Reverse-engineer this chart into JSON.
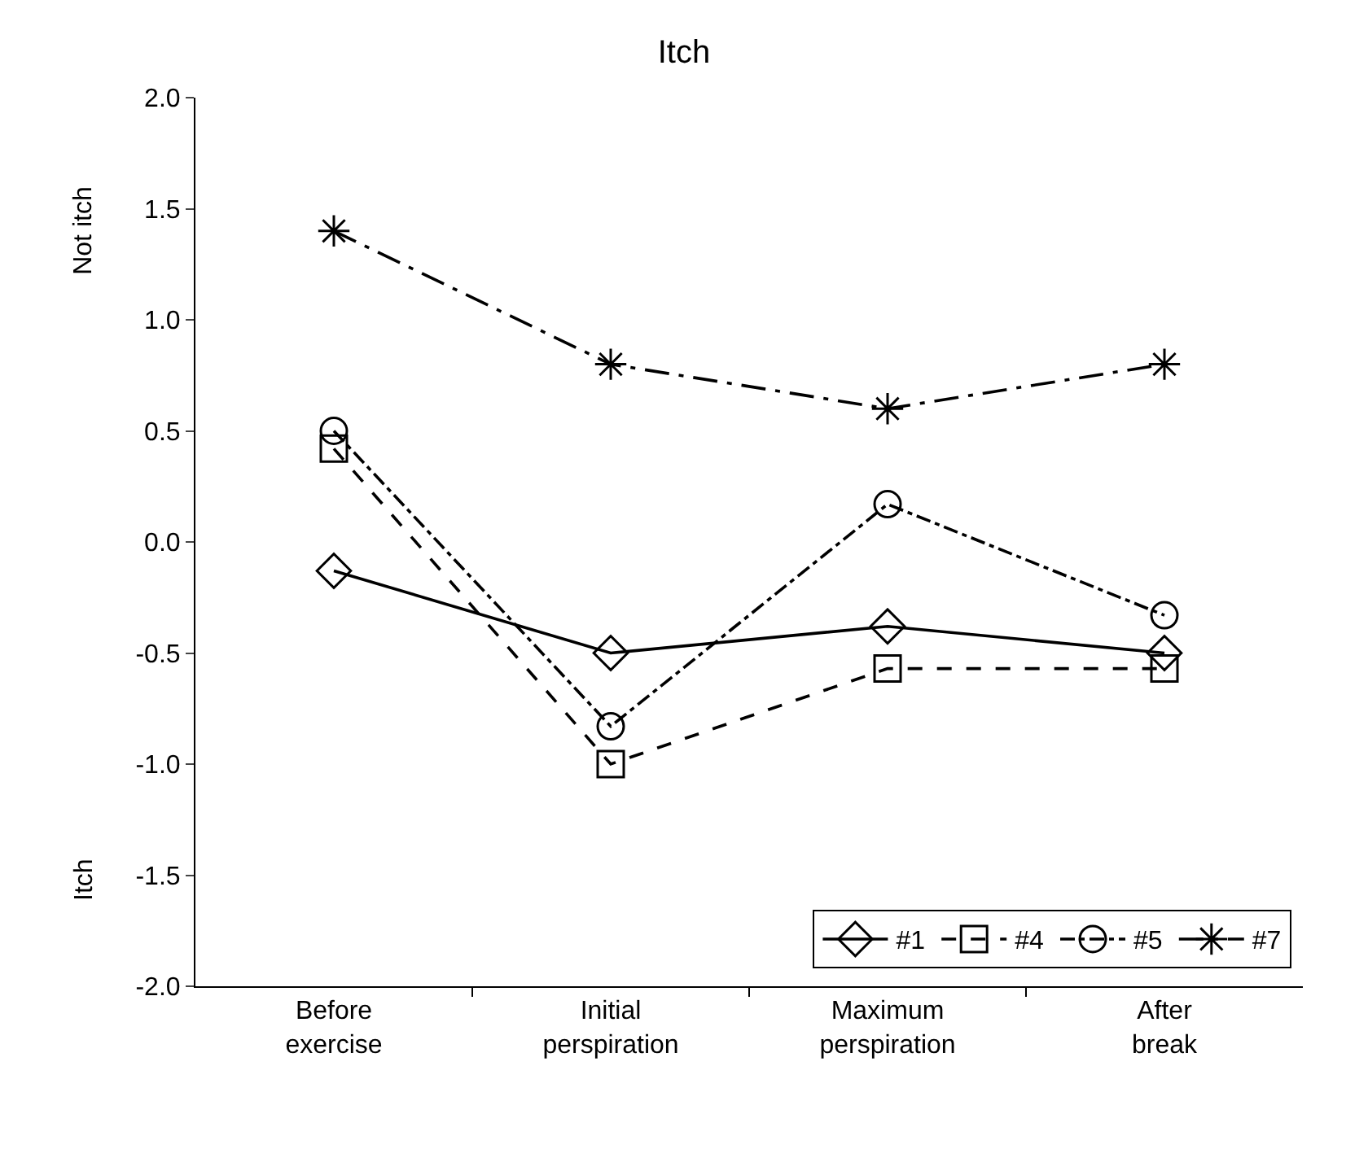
{
  "chart_data": {
    "type": "line",
    "title": "Itch",
    "categories": [
      "Before\nexercise",
      "Initial\nperspiration",
      "Maximum\nperspiration",
      "After\nbreak"
    ],
    "series": [
      {
        "name": "#1",
        "color": "#000000",
        "values": [
          -0.13,
          -0.5,
          -0.38,
          -0.5
        ],
        "marker": "diamond",
        "line_style": "solid"
      },
      {
        "name": "#4",
        "color": "#000000",
        "values": [
          0.42,
          -1.0,
          -0.57,
          -0.57
        ],
        "marker": "square",
        "line_style": "dashed"
      },
      {
        "name": "#5",
        "color": "#000000",
        "values": [
          0.5,
          -0.83,
          0.17,
          -0.33
        ],
        "marker": "circle",
        "line_style": "dashdot"
      },
      {
        "name": "#7",
        "color": "#000000",
        "values": [
          1.4,
          0.8,
          0.6,
          0.8
        ],
        "marker": "cross",
        "line_style": "longdashdot"
      }
    ],
    "ylim": [
      -2.0,
      2.0
    ],
    "yticks": [
      {
        "value": 2.0,
        "label": "2.0"
      },
      {
        "value": 1.5,
        "label": "1.5"
      },
      {
        "value": 1.0,
        "label": "1.0"
      },
      {
        "value": 0.5,
        "label": "0.5"
      },
      {
        "value": 0.0,
        "label": "0.0"
      },
      {
        "value": -0.5,
        "label": "-0.5"
      },
      {
        "value": -1.0,
        "label": "-1.0"
      },
      {
        "value": -1.5,
        "label": "-1.5"
      },
      {
        "value": -2.0,
        "label": "-2.0"
      }
    ],
    "annotations": [
      "Not itch",
      "Itch"
    ],
    "legend": "bottom right"
  }
}
